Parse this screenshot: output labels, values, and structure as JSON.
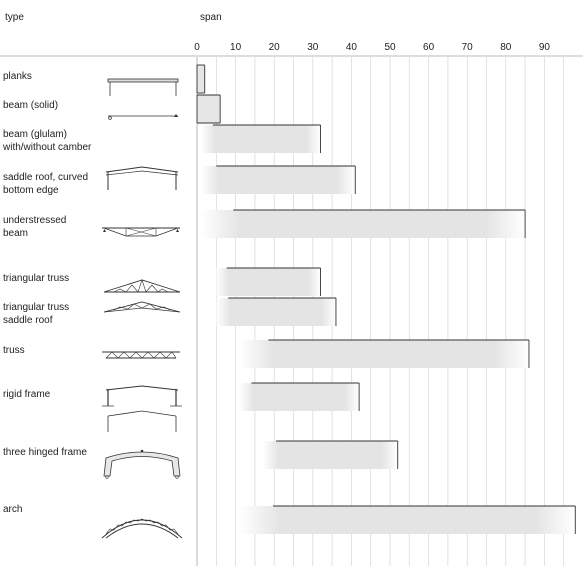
{
  "headers": {
    "type": "type",
    "span": "span"
  },
  "chart_data": {
    "type": "bar",
    "orientation": "horizontal-range",
    "title": "",
    "xlabel": "span",
    "ylabel": "type",
    "xlim": [
      0,
      98
    ],
    "ticks": [
      "0",
      "10",
      "20",
      "30",
      "40",
      "50",
      "60",
      "70",
      "80",
      "90"
    ],
    "grid": true,
    "legend": "none",
    "bar_fill": "#e6e6e6",
    "bar_stroke": "#333333",
    "series": [
      {
        "type_label": [
          "planks"
        ],
        "start": 0,
        "end": 2
      },
      {
        "type_label": [
          "beam (solid)"
        ],
        "start": 0,
        "end": 6
      },
      {
        "type_label": [
          "beam (glulam)",
          "with/without camber"
        ],
        "start": 1,
        "end": 32
      },
      {
        "type_label": [
          "saddle roof, curved",
          "bottom edge"
        ],
        "start": 1,
        "end": 41
      },
      {
        "type_label": [
          "understressed",
          "beam"
        ],
        "start": 1,
        "end": 85
      },
      {
        "type_label": [
          "triangular truss"
        ],
        "start": 5,
        "end": 32
      },
      {
        "type_label": [
          "triangular truss",
          "saddle roof"
        ],
        "start": 5,
        "end": 36
      },
      {
        "type_label": [
          "truss"
        ],
        "start": 11,
        "end": 86
      },
      {
        "type_label": [
          "rigid frame"
        ],
        "start": 11,
        "end": 42
      },
      {
        "type_label": [
          "three hinged frame"
        ],
        "start": 17,
        "end": 52
      },
      {
        "type_label": [
          "arch"
        ],
        "start": 11,
        "end": 98
      }
    ]
  }
}
